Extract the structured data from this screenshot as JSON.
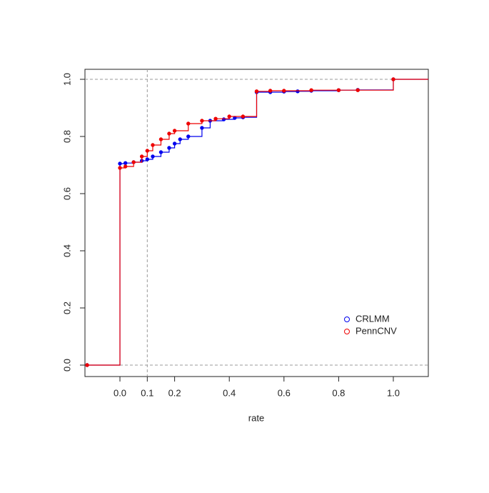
{
  "chart_data": {
    "type": "step",
    "x_label": "rate",
    "xlim": [
      -0.128,
      1.128
    ],
    "ylim": [
      -0.04,
      1.035
    ],
    "xticks": [
      {
        "value": 0,
        "label": "0.0"
      },
      0.1,
      0.2,
      0.4,
      0.6,
      0.8,
      {
        "value": 1,
        "label": "1.0"
      }
    ],
    "yticks": [
      {
        "value": 0,
        "label": "0.0"
      },
      0.2,
      0.4,
      0.6,
      0.8,
      {
        "value": 1,
        "label": "1.0"
      }
    ],
    "hlines": [
      0,
      1
    ],
    "vlines": [
      0.1
    ],
    "legend": "bottom-right",
    "series": [
      {
        "name": "CRLMM",
        "color": "#0000ee",
        "x": [
          -0.12,
          0,
          0.02,
          0.05,
          0.08,
          0.1,
          0.12,
          0.15,
          0.18,
          0.2,
          0.22,
          0.25,
          0.3,
          0.33,
          0.38,
          0.42,
          0.45,
          0.5,
          0.55,
          0.6,
          0.65,
          0.7,
          0.8,
          0.87,
          1.0
        ],
        "values": [
          0,
          0.705,
          0.707,
          0.71,
          0.715,
          0.72,
          0.73,
          0.745,
          0.76,
          0.775,
          0.79,
          0.8,
          0.83,
          0.855,
          0.86,
          0.865,
          0.867,
          0.955,
          0.955,
          0.957,
          0.958,
          0.96,
          0.962,
          0.963,
          1.0
        ]
      },
      {
        "name": "PennCNV",
        "color": "#ee0000",
        "x": [
          -0.12,
          0,
          0.02,
          0.05,
          0.08,
          0.1,
          0.12,
          0.15,
          0.18,
          0.2,
          0.25,
          0.3,
          0.35,
          0.4,
          0.45,
          0.5,
          0.55,
          0.6,
          0.7,
          0.8,
          0.87,
          1.0
        ],
        "values": [
          0,
          0.69,
          0.695,
          0.71,
          0.73,
          0.75,
          0.77,
          0.79,
          0.81,
          0.82,
          0.845,
          0.855,
          0.862,
          0.87,
          0.87,
          0.958,
          0.96,
          0.96,
          0.962,
          0.962,
          0.962,
          1.0
        ]
      }
    ]
  }
}
